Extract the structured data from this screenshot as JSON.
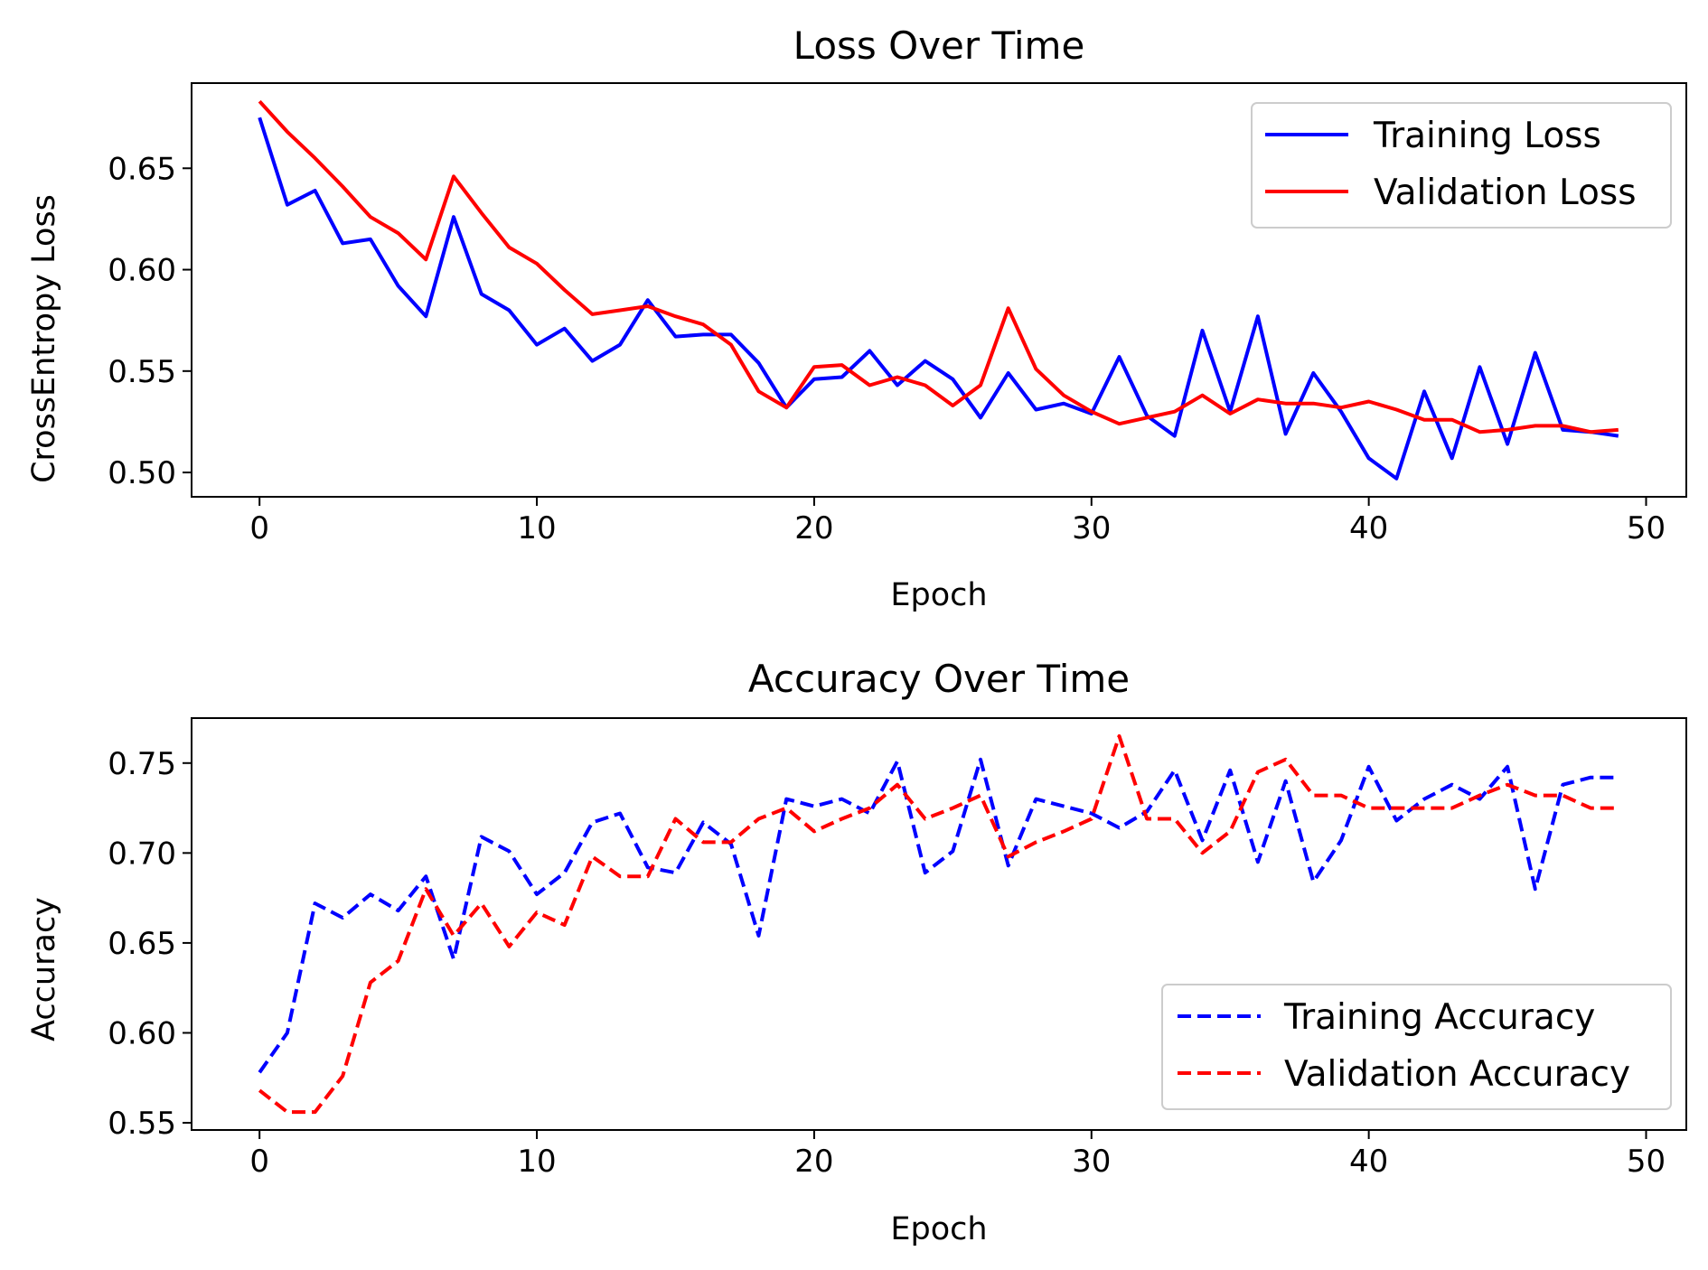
{
  "chart_data": [
    {
      "type": "line",
      "title": "Loss Over Time",
      "xlabel": "Epoch",
      "ylabel": "CrossEntropy Loss",
      "xlim": [
        -2.45,
        51.45
      ],
      "ylim": [
        0.488,
        0.692
      ],
      "xticks": [
        0,
        10,
        20,
        30,
        40,
        50
      ],
      "yticks": [
        0.5,
        0.55,
        0.6,
        0.65
      ],
      "ytick_labels": [
        "0.50",
        "0.55",
        "0.60",
        "0.65"
      ],
      "grid": false,
      "legend_position": "upper right",
      "x": [
        0,
        1,
        2,
        3,
        4,
        5,
        6,
        7,
        8,
        9,
        10,
        11,
        12,
        13,
        14,
        15,
        16,
        17,
        18,
        19,
        20,
        21,
        22,
        23,
        24,
        25,
        26,
        27,
        28,
        29,
        30,
        31,
        32,
        33,
        34,
        35,
        36,
        37,
        38,
        39,
        40,
        41,
        42,
        43,
        44,
        45,
        46,
        47,
        48,
        49
      ],
      "series": [
        {
          "name": "Training Loss",
          "color": "#0000ff",
          "linestyle": "solid",
          "values": [
            0.675,
            0.632,
            0.639,
            0.613,
            0.615,
            0.592,
            0.577,
            0.626,
            0.588,
            0.58,
            0.563,
            0.571,
            0.555,
            0.563,
            0.585,
            0.567,
            0.568,
            0.568,
            0.554,
            0.532,
            0.546,
            0.547,
            0.56,
            0.543,
            0.555,
            0.546,
            0.527,
            0.549,
            0.531,
            0.534,
            0.529,
            0.557,
            0.528,
            0.518,
            0.57,
            0.53,
            0.577,
            0.519,
            0.549,
            0.53,
            0.507,
            0.497,
            0.54,
            0.507,
            0.552,
            0.514,
            0.559,
            0.521,
            0.52,
            0.518
          ]
        },
        {
          "name": "Validation Loss",
          "color": "#ff0000",
          "linestyle": "solid",
          "values": [
            0.683,
            0.668,
            0.655,
            0.641,
            0.626,
            0.618,
            0.605,
            0.646,
            0.628,
            0.611,
            0.603,
            0.59,
            0.578,
            0.58,
            0.582,
            0.577,
            0.573,
            0.563,
            0.54,
            0.532,
            0.552,
            0.553,
            0.543,
            0.547,
            0.543,
            0.533,
            0.543,
            0.581,
            0.551,
            0.538,
            0.53,
            0.524,
            0.527,
            0.53,
            0.538,
            0.529,
            0.536,
            0.534,
            0.534,
            0.532,
            0.535,
            0.531,
            0.526,
            0.526,
            0.52,
            0.521,
            0.523,
            0.523,
            0.52,
            0.521
          ]
        }
      ]
    },
    {
      "type": "line",
      "title": "Accuracy Over Time",
      "xlabel": "Epoch",
      "ylabel": "Accuracy",
      "xlim": [
        -2.45,
        51.45
      ],
      "ylim": [
        0.546,
        0.775
      ],
      "xticks": [
        0,
        10,
        20,
        30,
        40,
        50
      ],
      "yticks": [
        0.55,
        0.6,
        0.65,
        0.7,
        0.75
      ],
      "ytick_labels": [
        "0.55",
        "0.60",
        "0.65",
        "0.70",
        "0.75"
      ],
      "grid": false,
      "legend_position": "lower right",
      "x": [
        0,
        1,
        2,
        3,
        4,
        5,
        6,
        7,
        8,
        9,
        10,
        11,
        12,
        13,
        14,
        15,
        16,
        17,
        18,
        19,
        20,
        21,
        22,
        23,
        24,
        25,
        26,
        27,
        28,
        29,
        30,
        31,
        32,
        33,
        34,
        35,
        36,
        37,
        38,
        39,
        40,
        41,
        42,
        43,
        44,
        45,
        46,
        47,
        48,
        49
      ],
      "series": [
        {
          "name": "Training Accuracy",
          "color": "#0000ff",
          "linestyle": "dashed",
          "values": [
            0.578,
            0.6,
            0.672,
            0.664,
            0.677,
            0.668,
            0.687,
            0.641,
            0.709,
            0.701,
            0.677,
            0.689,
            0.717,
            0.722,
            0.692,
            0.689,
            0.717,
            0.705,
            0.654,
            0.73,
            0.726,
            0.73,
            0.722,
            0.751,
            0.689,
            0.701,
            0.752,
            0.693,
            0.73,
            0.726,
            0.722,
            0.714,
            0.723,
            0.746,
            0.707,
            0.746,
            0.695,
            0.74,
            0.684,
            0.707,
            0.748,
            0.718,
            0.73,
            0.738,
            0.73,
            0.748,
            0.68,
            0.738,
            0.742,
            0.742
          ]
        },
        {
          "name": "Validation Accuracy",
          "color": "#ff0000",
          "linestyle": "dashed",
          "values": [
            0.568,
            0.556,
            0.556,
            0.576,
            0.628,
            0.64,
            0.68,
            0.654,
            0.672,
            0.648,
            0.667,
            0.66,
            0.698,
            0.687,
            0.687,
            0.719,
            0.706,
            0.706,
            0.719,
            0.725,
            0.712,
            0.719,
            0.725,
            0.738,
            0.719,
            0.725,
            0.732,
            0.698,
            0.706,
            0.712,
            0.719,
            0.765,
            0.719,
            0.719,
            0.7,
            0.712,
            0.745,
            0.752,
            0.732,
            0.732,
            0.725,
            0.725,
            0.725,
            0.725,
            0.732,
            0.738,
            0.732,
            0.732,
            0.725,
            0.725
          ]
        }
      ]
    }
  ]
}
